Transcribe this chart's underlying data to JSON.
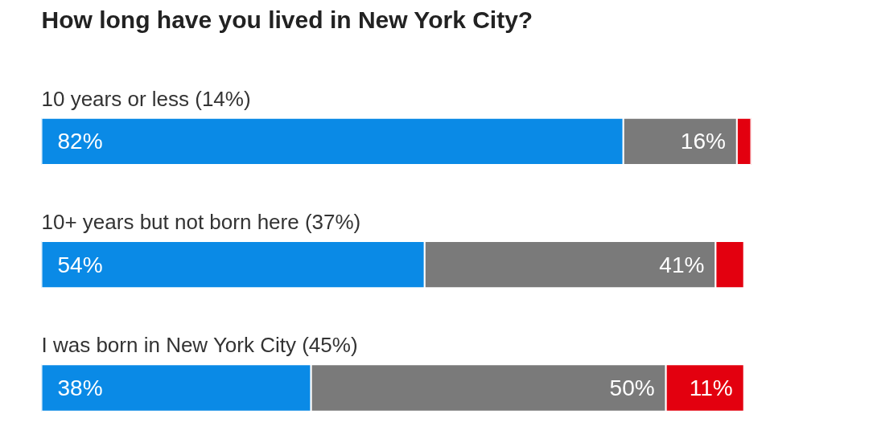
{
  "chart_data": {
    "type": "bar",
    "orientation": "horizontal",
    "stacked": true,
    "title": "How long have you lived in New York City?",
    "categories": [
      "10 years or less (14%)",
      "10+ years but not born here (37%)",
      "I was born in New York City (45%)"
    ],
    "series": [
      {
        "color": "#0a8ae6",
        "values": [
          82,
          54,
          38
        ],
        "value_labels": [
          "82%",
          "54%",
          "38%"
        ]
      },
      {
        "color": "#7a7a7a",
        "values": [
          16,
          41,
          50
        ],
        "value_labels": [
          "16%",
          "41%",
          "50%"
        ]
      },
      {
        "color": "#e3000f",
        "values": [
          2,
          4,
          11
        ],
        "value_labels": [
          null,
          null,
          "11%"
        ]
      }
    ],
    "grid": false
  }
}
